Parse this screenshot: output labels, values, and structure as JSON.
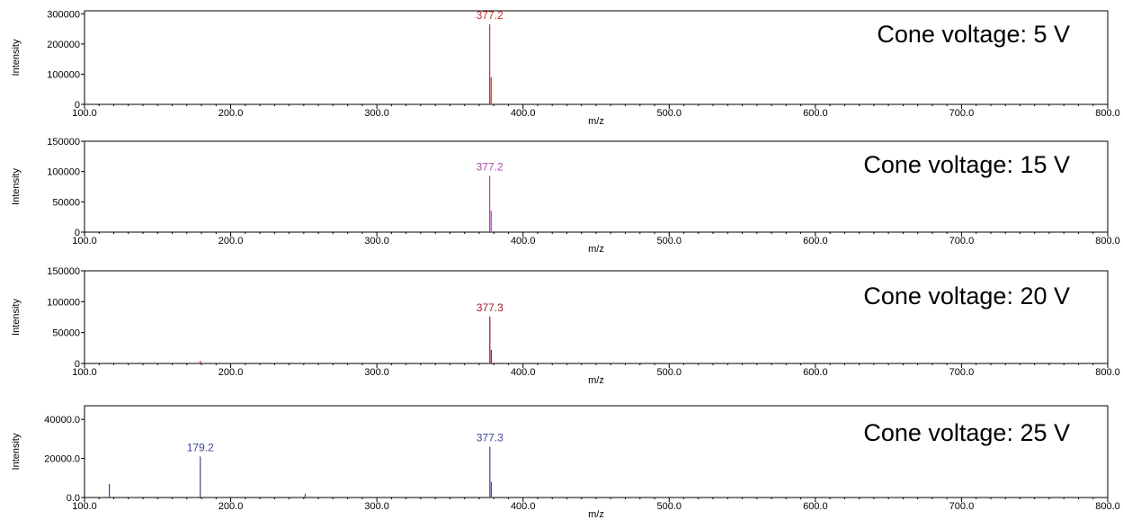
{
  "chart_data": [
    {
      "type": "line",
      "subtype": "mass-spectrum-stick",
      "annotation": "Cone voltage: 5 V",
      "xlabel": "m/z",
      "ylabel": "Intensity",
      "xlim": [
        100,
        800
      ],
      "ylim": [
        0,
        310000
      ],
      "x_ticks": [
        "100.0",
        "200.0",
        "300.0",
        "400.0",
        "500.0",
        "600.0",
        "700.0",
        "800.0"
      ],
      "y_ticks": [
        "0",
        "100000",
        "200000",
        "300000"
      ],
      "color": "#c8302e",
      "peaks": [
        {
          "x": 377.2,
          "y": 265000,
          "label": "377.2"
        },
        {
          "x": 378.2,
          "y": 90000
        }
      ]
    },
    {
      "type": "line",
      "subtype": "mass-spectrum-stick",
      "annotation": "Cone voltage: 15 V",
      "xlabel": "m/z",
      "ylabel": "Intensity",
      "xlim": [
        100,
        800
      ],
      "ylim": [
        0,
        150000
      ],
      "x_ticks": [
        "100.0",
        "200.0",
        "300.0",
        "400.0",
        "500.0",
        "600.0",
        "700.0",
        "800.0"
      ],
      "y_ticks": [
        "0",
        "50000",
        "100000",
        "150000"
      ],
      "color": "#b142b3",
      "peaks": [
        {
          "x": 377.2,
          "y": 93000,
          "label": "377.2"
        },
        {
          "x": 378.2,
          "y": 35000
        }
      ]
    },
    {
      "type": "line",
      "subtype": "mass-spectrum-stick",
      "annotation": "Cone voltage: 20 V",
      "xlabel": "m/z",
      "ylabel": "Intensity",
      "xlim": [
        100,
        800
      ],
      "ylim": [
        0,
        150000
      ],
      "x_ticks": [
        "100.0",
        "200.0",
        "300.0",
        "400.0",
        "500.0",
        "600.0",
        "700.0",
        "800.0"
      ],
      "y_ticks": [
        "0",
        "50000",
        "100000",
        "150000"
      ],
      "color": "#a1182a",
      "peaks": [
        {
          "x": 179.2,
          "y": 4000
        },
        {
          "x": 377.3,
          "y": 76000,
          "label": "377.3"
        },
        {
          "x": 378.3,
          "y": 22000
        }
      ]
    },
    {
      "type": "line",
      "subtype": "mass-spectrum-stick",
      "annotation": "Cone voltage: 25 V",
      "xlabel": "m/z",
      "ylabel": "Intensity",
      "xlim": [
        100,
        800
      ],
      "ylim": [
        0,
        47000
      ],
      "x_ticks": [
        "100.0",
        "200.0",
        "300.0",
        "400.0",
        "500.0",
        "600.0",
        "700.0",
        "800.0"
      ],
      "y_ticks": [
        "0.0",
        "20000.0",
        "40000.0"
      ],
      "color": "#3c4694",
      "peaks": [
        {
          "x": 117,
          "y": 7000
        },
        {
          "x": 179.2,
          "y": 21000,
          "label": "179.2"
        },
        {
          "x": 251,
          "y": 2000
        },
        {
          "x": 377.3,
          "y": 26000,
          "label": "377.3"
        },
        {
          "x": 378.3,
          "y": 8000
        }
      ]
    }
  ]
}
